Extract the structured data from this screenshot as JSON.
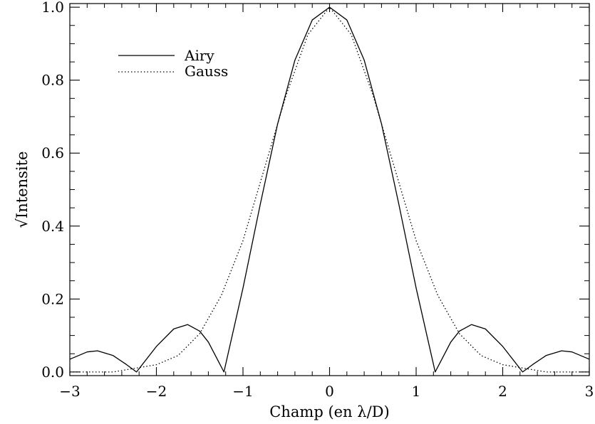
{
  "chart_data": {
    "type": "line",
    "title": "",
    "xlabel": "Champ (en λ/D)",
    "ylabel": "√Intensite",
    "xlim": [
      -3,
      3
    ],
    "ylim": [
      -0.01,
      1.01
    ],
    "x_ticks": [
      -3,
      -2,
      -1,
      0,
      1,
      2,
      3
    ],
    "x_tick_labels": [
      "−3",
      "−2",
      "−1",
      "0",
      "1",
      "2",
      "3"
    ],
    "y_ticks": [
      0.0,
      0.2,
      0.4,
      0.6,
      0.8,
      1.0
    ],
    "y_tick_labels": [
      "0.0",
      "0.2",
      "0.4",
      "0.6",
      "0.8",
      "1.0"
    ],
    "grid": false,
    "legend_position": "top-left",
    "series": [
      {
        "name": "Airy",
        "style": "solid",
        "color": "#000000",
        "x": [
          -3.0,
          -2.8,
          -2.68,
          -2.5,
          -2.35,
          -2.23,
          -2.0,
          -1.8,
          -1.64,
          -1.5,
          -1.4,
          -1.22,
          -1.0,
          -0.8,
          -0.6,
          -0.4,
          -0.2,
          0.0,
          0.2,
          0.4,
          0.6,
          0.8,
          1.0,
          1.22,
          1.4,
          1.5,
          1.64,
          1.8,
          2.0,
          2.23,
          2.35,
          2.5,
          2.68,
          2.8,
          3.0
        ],
        "y": [
          0.035,
          0.055,
          0.058,
          0.045,
          0.021,
          0.0,
          0.07,
          0.118,
          0.13,
          0.112,
          0.082,
          0.0,
          0.23,
          0.46,
          0.68,
          0.855,
          0.965,
          1.0,
          0.965,
          0.855,
          0.68,
          0.46,
          0.23,
          0.0,
          0.082,
          0.112,
          0.13,
          0.118,
          0.07,
          0.0,
          0.021,
          0.045,
          0.058,
          0.055,
          0.035
        ]
      },
      {
        "name": "Gauss",
        "style": "dotted",
        "color": "#000000",
        "x": [
          -3.0,
          -2.5,
          -2.0,
          -1.75,
          -1.5,
          -1.25,
          -1.0,
          -0.75,
          -0.5,
          -0.25,
          0.0,
          0.25,
          0.5,
          0.75,
          1.0,
          1.25,
          1.5,
          1.75,
          2.0,
          2.5,
          3.0
        ],
        "y": [
          0.0,
          0.0,
          0.02,
          0.045,
          0.105,
          0.21,
          0.36,
          0.56,
          0.76,
          0.925,
          1.0,
          0.925,
          0.76,
          0.56,
          0.36,
          0.21,
          0.105,
          0.045,
          0.02,
          0.0,
          0.0
        ]
      }
    ]
  }
}
